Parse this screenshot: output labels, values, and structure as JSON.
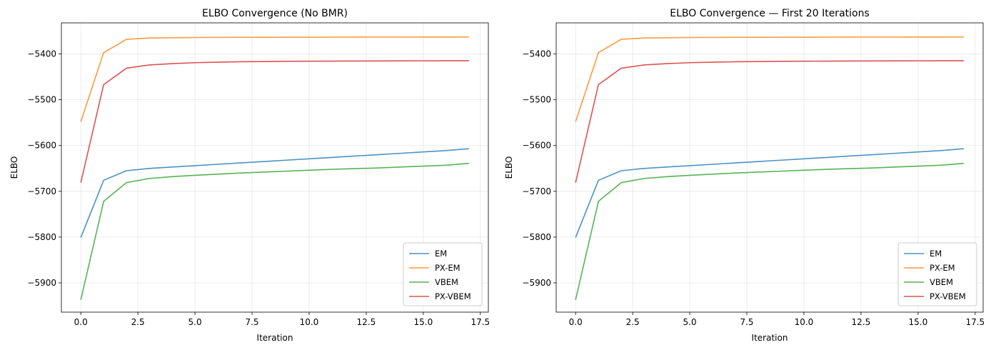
{
  "chart_data": [
    {
      "type": "line",
      "title": "ELBO Convergence (No BMR)",
      "xlabel": "Iteration",
      "ylabel": "ELBO",
      "xlim": [
        -0.85,
        17.85
      ],
      "ylim": [
        -5964,
        -5332
      ],
      "xticks": [
        0.0,
        2.5,
        5.0,
        7.5,
        10.0,
        12.5,
        15.0,
        17.5
      ],
      "xtick_labels": [
        "0.0",
        "2.5",
        "5.0",
        "7.5",
        "10.0",
        "12.5",
        "15.0",
        "17.5"
      ],
      "yticks": [
        -5900,
        -5800,
        -5700,
        -5600,
        -5500,
        -5400
      ],
      "ytick_labels": [
        "−5900",
        "−5800",
        "−5700",
        "−5600",
        "−5500",
        "−5400"
      ],
      "grid": true,
      "legend_position": "lower right",
      "x": [
        0,
        1,
        2,
        3,
        4,
        5,
        6,
        7,
        8,
        9,
        10,
        11,
        12,
        13,
        14,
        15,
        16,
        17
      ],
      "series": [
        {
          "name": "EM",
          "color": "#1f77b4",
          "values": [
            -5801,
            -5676,
            -5655,
            -5650,
            -5647,
            -5644,
            -5641,
            -5638,
            -5635,
            -5632,
            -5629,
            -5626,
            -5623,
            -5620,
            -5617,
            -5614,
            -5611,
            -5607
          ]
        },
        {
          "name": "PX-EM",
          "color": "#ff7f0e",
          "values": [
            -5548,
            -5397,
            -5368,
            -5365,
            -5364.5,
            -5364,
            -5363.8,
            -5363.6,
            -5363.5,
            -5363.4,
            -5363.3,
            -5363.2,
            -5363.1,
            -5363.0,
            -5363.0,
            -5362.9,
            -5362.9,
            -5362.8
          ]
        },
        {
          "name": "VBEM",
          "color": "#2ca02c",
          "values": [
            -5937,
            -5722,
            -5681,
            -5672,
            -5668,
            -5665,
            -5662.5,
            -5660,
            -5658,
            -5656,
            -5654,
            -5652,
            -5650.5,
            -5649,
            -5647,
            -5645,
            -5643,
            -5639
          ]
        },
        {
          "name": "PX-VBEM",
          "color": "#d62728",
          "values": [
            -5681,
            -5467,
            -5431,
            -5424,
            -5421,
            -5419,
            -5418,
            -5417,
            -5416.5,
            -5416,
            -5415.8,
            -5415.6,
            -5415.4,
            -5415.2,
            -5415.0,
            -5414.9,
            -5414.8,
            -5414.6
          ]
        }
      ]
    },
    {
      "type": "line",
      "title": "ELBO Convergence — First 20 Iterations",
      "xlabel": "Iteration",
      "ylabel": "ELBO",
      "xlim": [
        -0.85,
        17.85
      ],
      "ylim": [
        -5964,
        -5332
      ],
      "xticks": [
        0.0,
        2.5,
        5.0,
        7.5,
        10.0,
        12.5,
        15.0,
        17.5
      ],
      "xtick_labels": [
        "0.0",
        "2.5",
        "5.0",
        "7.5",
        "10.0",
        "12.5",
        "15.0",
        "17.5"
      ],
      "yticks": [
        -5900,
        -5800,
        -5700,
        -5600,
        -5500,
        -5400
      ],
      "ytick_labels": [
        "−5900",
        "−5800",
        "−5700",
        "−5600",
        "−5500",
        "−5400"
      ],
      "grid": true,
      "legend_position": "lower right",
      "x": [
        0,
        1,
        2,
        3,
        4,
        5,
        6,
        7,
        8,
        9,
        10,
        11,
        12,
        13,
        14,
        15,
        16,
        17
      ],
      "series": [
        {
          "name": "EM",
          "color": "#1f77b4",
          "values": [
            -5801,
            -5676,
            -5655,
            -5650,
            -5647,
            -5644,
            -5641,
            -5638,
            -5635,
            -5632,
            -5629,
            -5626,
            -5623,
            -5620,
            -5617,
            -5614,
            -5611,
            -5607
          ]
        },
        {
          "name": "PX-EM",
          "color": "#ff7f0e",
          "values": [
            -5548,
            -5397,
            -5368,
            -5365,
            -5364.5,
            -5364,
            -5363.8,
            -5363.6,
            -5363.5,
            -5363.4,
            -5363.3,
            -5363.2,
            -5363.1,
            -5363.0,
            -5363.0,
            -5362.9,
            -5362.9,
            -5362.8
          ]
        },
        {
          "name": "VBEM",
          "color": "#2ca02c",
          "values": [
            -5937,
            -5722,
            -5681,
            -5672,
            -5668,
            -5665,
            -5662.5,
            -5660,
            -5658,
            -5656,
            -5654,
            -5652,
            -5650.5,
            -5649,
            -5647,
            -5645,
            -5643,
            -5639
          ]
        },
        {
          "name": "PX-VBEM",
          "color": "#d62728",
          "values": [
            -5681,
            -5467,
            -5431,
            -5424,
            -5421,
            -5419,
            -5418,
            -5417,
            -5416.5,
            -5416,
            -5415.8,
            -5415.6,
            -5415.4,
            -5415.2,
            -5415.0,
            -5414.9,
            -5414.8,
            -5414.6
          ]
        }
      ]
    }
  ]
}
